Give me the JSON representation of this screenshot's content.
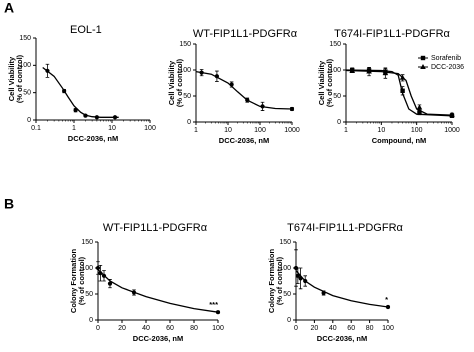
{
  "panel_labels": [
    "A",
    "B"
  ],
  "chart_data": [
    {
      "type": "dose-response",
      "title": "EOL-1",
      "xlabel": "DCC-2036, nM",
      "ylabel": [
        "Cell Viability",
        "(% of control)"
      ],
      "xscale": "log",
      "xlim": [
        0.1,
        100
      ],
      "xticks": [
        0.1,
        1,
        10,
        100
      ],
      "ylim": [
        0,
        150
      ],
      "yticks": [
        0,
        50,
        100,
        150
      ],
      "series": [
        {
          "color": "#000000",
          "marker": "circle",
          "x": [
            0.2,
            0.55,
            1.1,
            2,
            4,
            12
          ],
          "values": [
            90,
            53,
            18,
            8,
            5,
            5
          ],
          "errors": [
            12,
            3,
            3,
            2,
            1,
            1
          ],
          "fit": {
            "x": [
              0.15,
              0.3,
              0.5,
              0.7,
              1,
              1.5,
              2,
              3,
              5,
              10,
              15
            ],
            "values": [
              96,
              80,
              58,
              42,
              26,
              14,
              9,
              6,
              5,
              5,
              5
            ]
          }
        }
      ]
    },
    {
      "type": "dose-response",
      "title": "WT-FIP1L1-PDGFRα",
      "xlabel": "DCC-2036, nM",
      "ylabel": [
        "Cell Viability",
        "(% of control)"
      ],
      "xscale": "log",
      "xlim": [
        1,
        1000
      ],
      "xticks": [
        1,
        10,
        100,
        1000
      ],
      "ylim": [
        0,
        150
      ],
      "yticks": [
        0,
        50,
        100,
        150
      ],
      "series": [
        {
          "color": "#000000",
          "marker": "circle",
          "x": [
            1.5,
            4.5,
            13,
            40,
            120,
            1000
          ],
          "values": [
            95,
            88,
            72,
            42,
            30,
            25
          ],
          "errors": [
            6,
            10,
            5,
            4,
            8,
            3
          ],
          "fit": {
            "x": [
              1,
              3,
              10,
              20,
              40,
              100,
              300,
              1000
            ],
            "values": [
              97,
              92,
              75,
              58,
              42,
              30,
              26,
              25
            ]
          }
        }
      ]
    },
    {
      "type": "dose-response",
      "title": "T674I-FIP1L1-PDGFRα",
      "xlabel": "Compound, nM",
      "ylabel": [
        "Cell Viability",
        "(% of control)"
      ],
      "xscale": "log",
      "xlim": [
        1,
        1000
      ],
      "xticks": [
        1,
        10,
        100,
        1000
      ],
      "ylim": [
        0,
        150
      ],
      "yticks": [
        0,
        50,
        100,
        150
      ],
      "legend": "upper right",
      "series": [
        {
          "name": "Sorafenib",
          "color": "#000000",
          "marker": "square",
          "x": [
            1.5,
            4.5,
            13,
            40,
            120,
            1000
          ],
          "values": [
            100,
            99,
            97,
            60,
            18,
            12
          ],
          "errors": [
            4,
            5,
            6,
            8,
            4,
            3
          ],
          "fit": {
            "x": [
              1,
              10,
              20,
              30,
              40,
              60,
              100,
              1000
            ],
            "values": [
              100,
              99,
              97,
              90,
              55,
              25,
              15,
              12
            ]
          }
        },
        {
          "name": "DCC-2036",
          "color": "#000000",
          "marker": "triangle",
          "x": [
            1.5,
            4.5,
            13,
            40,
            120,
            1000
          ],
          "values": [
            98,
            97,
            94,
            85,
            28,
            14
          ],
          "errors": [
            3,
            8,
            10,
            6,
            5,
            3
          ],
          "fit": {
            "x": [
              1,
              10,
              30,
              50,
              70,
              100,
              200,
              1000
            ],
            "values": [
              99,
              97,
              93,
              80,
              50,
              25,
              15,
              13
            ]
          }
        }
      ]
    },
    {
      "type": "dose-response",
      "title": "WT-FIP1L1-PDGFRα",
      "xlabel": "DCC-2036, nM",
      "ylabel": [
        "Colony Formation",
        "(% of control)"
      ],
      "xscale": "linear",
      "xlim": [
        0,
        100
      ],
      "xticks": [
        0,
        20,
        40,
        60,
        80,
        100
      ],
      "ylim": [
        0,
        150
      ],
      "yticks": [
        0,
        50,
        100,
        150
      ],
      "annotation": "***",
      "series": [
        {
          "color": "#000000",
          "marker": "circle",
          "x": [
            0,
            2,
            5,
            10,
            30,
            100
          ],
          "values": [
            100,
            90,
            85,
            70,
            53,
            15
          ],
          "errors": [
            12,
            15,
            10,
            8,
            5,
            2
          ],
          "fit": {
            "x": [
              0,
              10,
              20,
              40,
              60,
              80,
              100
            ],
            "values": [
              97,
              75,
              62,
              45,
              32,
              22,
              15
            ]
          }
        }
      ]
    },
    {
      "type": "dose-response",
      "title": "T674I-FIP1L1-PDGFRα",
      "xlabel": "DCC-2036, nM",
      "ylabel": [
        "Colony Formation",
        "(% of control)"
      ],
      "xscale": "linear",
      "xlim": [
        0,
        100
      ],
      "xticks": [
        0,
        20,
        40,
        60,
        80,
        100
      ],
      "ylim": [
        0,
        150
      ],
      "yticks": [
        0,
        50,
        100,
        150
      ],
      "annotation": "*",
      "series": [
        {
          "color": "#000000",
          "marker": "circle",
          "x": [
            0,
            2,
            5,
            10,
            30,
            100
          ],
          "values": [
            100,
            85,
            80,
            75,
            52,
            25
          ],
          "errors": [
            35,
            15,
            20,
            10,
            4,
            2
          ],
          "fit": {
            "x": [
              0,
              10,
              20,
              40,
              60,
              80,
              100
            ],
            "values": [
              95,
              75,
              63,
              47,
              37,
              30,
              25
            ]
          }
        }
      ]
    }
  ]
}
